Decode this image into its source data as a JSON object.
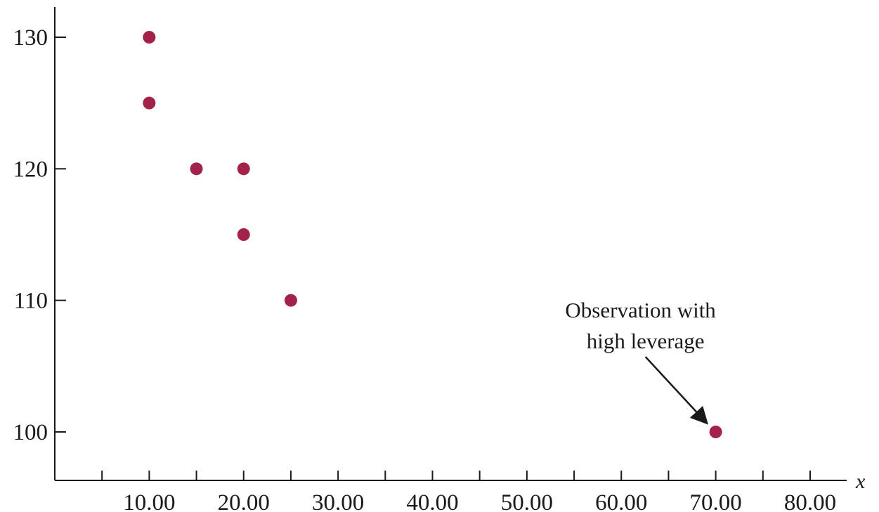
{
  "chart_data": {
    "type": "scatter",
    "xlabel": "x",
    "ylabel": "",
    "xlim": [
      0,
      80
    ],
    "ylim": [
      96.3,
      132.3
    ],
    "x_ticks": [
      5,
      10,
      15,
      20,
      25,
      30,
      35,
      40,
      45,
      50,
      55,
      60,
      65,
      70,
      75,
      80
    ],
    "x_tick_labels": [
      {
        "value": 10,
        "label": "10.00"
      },
      {
        "value": 20,
        "label": "20.00"
      },
      {
        "value": 30,
        "label": "30.00"
      },
      {
        "value": 40,
        "label": "40.00"
      },
      {
        "value": 50,
        "label": "50.00"
      },
      {
        "value": 60,
        "label": "60.00"
      },
      {
        "value": 70,
        "label": "70.00"
      },
      {
        "value": 80,
        "label": "80.00"
      }
    ],
    "y_ticks": [
      100,
      110,
      120,
      130
    ],
    "y_tick_labels": [
      {
        "value": 100,
        "label": "100"
      },
      {
        "value": 110,
        "label": "110"
      },
      {
        "value": 120,
        "label": "120"
      },
      {
        "value": 130,
        "label": "130"
      }
    ],
    "grid": false,
    "marker_color": "#a3224a",
    "series": [
      {
        "points": [
          {
            "x": 10,
            "y": 130
          },
          {
            "x": 10,
            "y": 125
          },
          {
            "x": 15,
            "y": 120
          },
          {
            "x": 20,
            "y": 120
          },
          {
            "x": 20,
            "y": 115
          },
          {
            "x": 25,
            "y": 110
          },
          {
            "x": 70,
            "y": 100
          }
        ]
      }
    ],
    "annotations": [
      {
        "lines": [
          "Observation with",
          "high leverage"
        ],
        "target": {
          "x": 70,
          "y": 100
        }
      }
    ]
  }
}
